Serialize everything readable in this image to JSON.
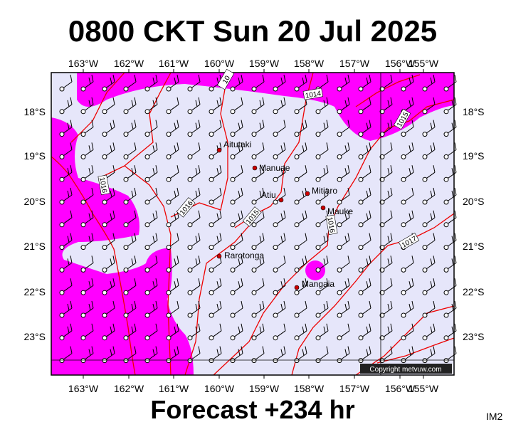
{
  "title": "0800 CKT Sun 20 Jul 2025",
  "footer": "Forecast +234 hr",
  "code": "IM2",
  "copyright": "Copyright metvuw.com",
  "longitudes": [
    "163°W",
    "162°W",
    "161°W",
    "160°W",
    "159°W",
    "158°W",
    "157°W",
    "156°W",
    "155°W"
  ],
  "latitudes": [
    "18°S",
    "19°S",
    "20°S",
    "21°S",
    "22°S",
    "23°S"
  ],
  "places": [
    {
      "label": "Aitutaki"
    },
    {
      "label": "Manuae"
    },
    {
      "label": "Atiu"
    },
    {
      "label": "Mitiaro"
    },
    {
      "label": "Mauke"
    },
    {
      "label": "Rarotonga"
    },
    {
      "label": "Mangaia"
    }
  ],
  "isobar_labels": [
    "10",
    "1014",
    "1015",
    "1016",
    "1016",
    "1015",
    "1016",
    "1017"
  ]
}
